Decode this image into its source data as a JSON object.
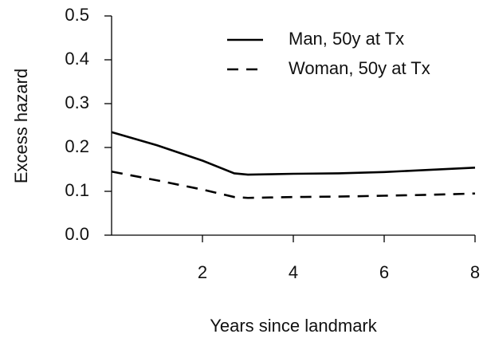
{
  "chart_data": {
    "type": "line",
    "x_label": "Years since landmark",
    "y_label": "Excess hazard",
    "x": [
      0,
      1,
      2,
      2.7,
      3,
      3.5,
      4,
      5,
      6,
      7,
      8
    ],
    "series": [
      {
        "name": "Man, 50y at Tx",
        "color": "#000000",
        "dash": "solid",
        "values": [
          0.235,
          0.205,
          0.17,
          0.141,
          0.138,
          0.139,
          0.14,
          0.141,
          0.144,
          0.149,
          0.154
        ]
      },
      {
        "name": "Woman, 50y at Tx",
        "color": "#000000",
        "dash": "dashed",
        "values": [
          0.145,
          0.125,
          0.104,
          0.087,
          0.085,
          0.086,
          0.087,
          0.088,
          0.09,
          0.092,
          0.095
        ]
      }
    ],
    "xlim": [
      0,
      8
    ],
    "xticks": [
      2,
      4,
      6,
      8
    ],
    "ylim": [
      0,
      0.5
    ],
    "yticks": [
      {
        "value": 0,
        "label": "0.0"
      },
      0.1,
      0.2,
      0.3,
      0.4,
      0.5
    ],
    "legend": "top-right",
    "grid": false
  }
}
